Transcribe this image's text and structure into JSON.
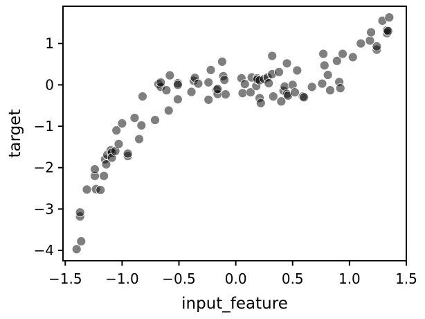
{
  "chart_data": {
    "type": "scatter",
    "title": "",
    "xlabel": "input_feature",
    "ylabel": "target",
    "xlim": [
      -1.52,
      1.5
    ],
    "ylim": [
      -4.25,
      1.9
    ],
    "xticks": [
      -1.5,
      -1.0,
      -0.5,
      0.0,
      0.5,
      1.0,
      1.5
    ],
    "xtick_labels": [
      "−1.5",
      "−1.0",
      "−0.5",
      "0.0",
      "0.5",
      "1.0",
      "1.5"
    ],
    "yticks": [
      -4,
      -3,
      -2,
      -1,
      0,
      1
    ],
    "ytick_labels": [
      "−4",
      "−3",
      "−2",
      "−1",
      "0",
      "1"
    ],
    "grid": false,
    "legend": "none",
    "colors": {
      "point_fill": "#000000",
      "point_opacity": 0.5,
      "point_stroke": "#ffffff",
      "axis": "#000000"
    },
    "points": [
      {
        "x": -1.4,
        "y": -3.97
      },
      {
        "x": -1.36,
        "y": -3.78
      },
      {
        "x": -1.37,
        "y": -3.18
      },
      {
        "x": -1.37,
        "y": -3.08
      },
      {
        "x": -1.31,
        "y": -2.53
      },
      {
        "x": -1.23,
        "y": -2.52
      },
      {
        "x": -1.24,
        "y": -2.2
      },
      {
        "x": -1.24,
        "y": -2.04
      },
      {
        "x": -1.19,
        "y": -2.54
      },
      {
        "x": -1.16,
        "y": -2.2
      },
      {
        "x": -1.15,
        "y": -1.8
      },
      {
        "x": -1.14,
        "y": -1.92
      },
      {
        "x": -1.13,
        "y": -1.69
      },
      {
        "x": -1.1,
        "y": -1.58
      },
      {
        "x": -1.09,
        "y": -1.64
      },
      {
        "x": -1.09,
        "y": -1.76
      },
      {
        "x": -1.06,
        "y": -1.6
      },
      {
        "x": -1.05,
        "y": -1.1
      },
      {
        "x": -1.03,
        "y": -1.43
      },
      {
        "x": -1.0,
        "y": -0.93
      },
      {
        "x": -0.95,
        "y": -1.72
      },
      {
        "x": -0.95,
        "y": -1.66
      },
      {
        "x": -0.89,
        "y": -0.8
      },
      {
        "x": -0.85,
        "y": -1.31
      },
      {
        "x": -0.83,
        "y": -0.98
      },
      {
        "x": -0.82,
        "y": -0.28
      },
      {
        "x": -0.71,
        "y": -0.85
      },
      {
        "x": -0.68,
        "y": 0.02
      },
      {
        "x": -0.66,
        "y": -0.05
      },
      {
        "x": -0.66,
        "y": 0.06
      },
      {
        "x": -0.61,
        "y": -0.13
      },
      {
        "x": -0.59,
        "y": -0.62
      },
      {
        "x": -0.58,
        "y": 0.23
      },
      {
        "x": -0.51,
        "y": 0.04
      },
      {
        "x": -0.51,
        "y": 0.0
      },
      {
        "x": -0.51,
        "y": -0.35
      },
      {
        "x": -0.39,
        "y": -0.17
      },
      {
        "x": -0.37,
        "y": 0.1
      },
      {
        "x": -0.36,
        "y": 0.17
      },
      {
        "x": -0.33,
        "y": 0.03
      },
      {
        "x": -0.24,
        "y": 0.06
      },
      {
        "x": -0.24,
        "y": -0.36
      },
      {
        "x": -0.22,
        "y": 0.36
      },
      {
        "x": -0.17,
        "y": -0.12
      },
      {
        "x": -0.16,
        "y": -0.22
      },
      {
        "x": -0.16,
        "y": -0.1
      },
      {
        "x": -0.12,
        "y": 0.56
      },
      {
        "x": -0.11,
        "y": 0.21
      },
      {
        "x": -0.1,
        "y": 0.12
      },
      {
        "x": -0.09,
        "y": -0.23
      },
      {
        "x": 0.05,
        "y": 0.16
      },
      {
        "x": 0.06,
        "y": -0.2
      },
      {
        "x": 0.08,
        "y": 0.02
      },
      {
        "x": 0.13,
        "y": -0.18
      },
      {
        "x": 0.14,
        "y": 0.18
      },
      {
        "x": 0.18,
        "y": -0.03
      },
      {
        "x": 0.19,
        "y": 0.16
      },
      {
        "x": 0.19,
        "y": 0.13
      },
      {
        "x": 0.21,
        "y": -0.32
      },
      {
        "x": 0.21,
        "y": 0.11
      },
      {
        "x": 0.22,
        "y": -0.44
      },
      {
        "x": 0.25,
        "y": 0.14
      },
      {
        "x": 0.28,
        "y": 0.18
      },
      {
        "x": 0.29,
        "y": 0.04
      },
      {
        "x": 0.32,
        "y": 0.7
      },
      {
        "x": 0.32,
        "y": 0.26
      },
      {
        "x": 0.33,
        "y": -0.28
      },
      {
        "x": 0.38,
        "y": 0.31
      },
      {
        "x": 0.4,
        "y": -0.4
      },
      {
        "x": 0.42,
        "y": -0.14
      },
      {
        "x": 0.43,
        "y": -0.04
      },
      {
        "x": 0.45,
        "y": -0.22
      },
      {
        "x": 0.45,
        "y": 0.52
      },
      {
        "x": 0.46,
        "y": -0.26
      },
      {
        "x": 0.5,
        "y": 0.0
      },
      {
        "x": 0.52,
        "y": -0.18
      },
      {
        "x": 0.54,
        "y": 0.35
      },
      {
        "x": 0.59,
        "y": -0.28
      },
      {
        "x": 0.6,
        "y": -0.3
      },
      {
        "x": 0.67,
        "y": -0.05
      },
      {
        "x": 0.76,
        "y": 0.03
      },
      {
        "x": 0.77,
        "y": 0.75
      },
      {
        "x": 0.78,
        "y": 0.47
      },
      {
        "x": 0.81,
        "y": 0.24
      },
      {
        "x": 0.83,
        "y": -0.13
      },
      {
        "x": 0.89,
        "y": 0.58
      },
      {
        "x": 0.91,
        "y": 0.07
      },
      {
        "x": 0.92,
        "y": -0.08
      },
      {
        "x": 0.94,
        "y": 0.75
      },
      {
        "x": 1.03,
        "y": 0.67
      },
      {
        "x": 1.1,
        "y": 1.0
      },
      {
        "x": 1.18,
        "y": 1.07
      },
      {
        "x": 1.19,
        "y": 1.27
      },
      {
        "x": 1.24,
        "y": 0.85
      },
      {
        "x": 1.24,
        "y": 0.93
      },
      {
        "x": 1.29,
        "y": 1.55
      },
      {
        "x": 1.33,
        "y": 1.25
      },
      {
        "x": 1.33,
        "y": 1.32
      },
      {
        "x": 1.34,
        "y": 1.3
      },
      {
        "x": 1.35,
        "y": 1.63
      }
    ]
  }
}
